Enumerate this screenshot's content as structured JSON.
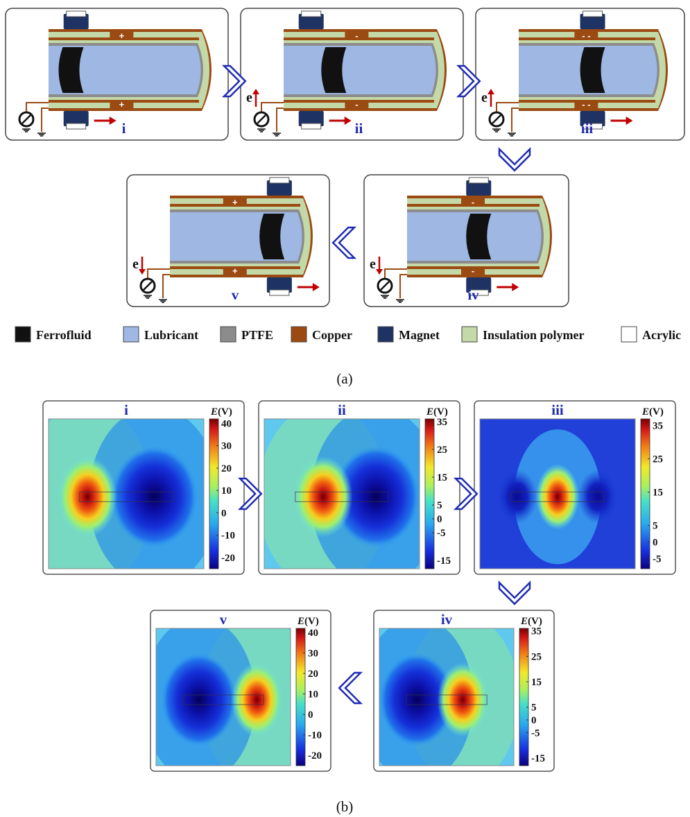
{
  "panel_a": {
    "caption": "(a)",
    "steps": [
      {
        "id": "i",
        "label": "i",
        "magnet_pos": 0.12,
        "fluid_pos": 0.08,
        "plus_sign": "+",
        "top_copper_sign": "+",
        "show_current": false
      },
      {
        "id": "ii",
        "label": "ii",
        "magnet_pos": 0.12,
        "fluid_pos": 0.3,
        "top_copper_sign": "-",
        "show_current": true,
        "current_dir": "up"
      },
      {
        "id": "iii",
        "label": "iii",
        "magnet_pos": 0.55,
        "fluid_pos": 0.55,
        "top_copper_sign": "- -",
        "show_current": true,
        "current_dir": "up"
      },
      {
        "id": "iv",
        "label": "iv",
        "magnet_pos": 0.55,
        "fluid_pos": 0.55,
        "top_copper_sign": "-",
        "show_current": true,
        "current_dir": "down"
      },
      {
        "id": "v",
        "label": "v",
        "magnet_pos": 0.92,
        "fluid_pos": 0.85,
        "top_copper_sign": "+",
        "show_current": true,
        "current_dir": "down"
      }
    ],
    "electron_label": "e",
    "legend": [
      {
        "label": "Ferrofluid",
        "color": "#111111"
      },
      {
        "label": "Lubricant",
        "color": "#9fb7e3"
      },
      {
        "label": "PTFE",
        "color": "#8c8c8c"
      },
      {
        "label": "Copper",
        "color": "#9b4a12"
      },
      {
        "label": "Magnet",
        "color": "#1e3264"
      },
      {
        "label": "Insulation polymer",
        "color": "#c4d9a8"
      },
      {
        "label": "Acrylic",
        "color": "#ffffff"
      }
    ]
  },
  "panel_b": {
    "caption": "(b)",
    "colorbar_title_italic": "E",
    "colorbar_title_rest": "(V)",
    "maps": [
      {
        "id": "i",
        "label": "i",
        "ticks": [
          "40",
          "30",
          "20",
          "10",
          "0",
          "-10",
          "-20"
        ],
        "range": [
          -25,
          42
        ],
        "pos_x": 0.25,
        "neg_x": 0.68,
        "pos_strength": 1.0,
        "neg_strength": 1.0
      },
      {
        "id": "ii",
        "label": "ii",
        "ticks": [
          "35",
          "25",
          "15",
          "5",
          "0",
          "-5",
          "-15"
        ],
        "range": [
          -18,
          36
        ],
        "pos_x": 0.38,
        "neg_x": 0.72,
        "pos_strength": 1.0,
        "neg_strength": 0.85
      },
      {
        "id": "iii",
        "label": "iii",
        "ticks": [
          "35",
          "25",
          "15",
          "5",
          "0",
          "-5"
        ],
        "range": [
          -8,
          37
        ],
        "pos_x": 0.5,
        "neg_x": 0.24,
        "neg_x2": 0.76,
        "pos_strength": 1.0,
        "neg_strength": 0.6
      },
      {
        "id": "iv",
        "label": "iv",
        "ticks": [
          "35",
          "25",
          "15",
          "5",
          "0",
          "-5",
          "-15"
        ],
        "range": [
          -18,
          36
        ],
        "pos_x": 0.62,
        "neg_x": 0.28,
        "pos_strength": 1.0,
        "neg_strength": 0.85
      },
      {
        "id": "v",
        "label": "v",
        "ticks": [
          "40",
          "30",
          "20",
          "10",
          "0",
          "-10",
          "-20"
        ],
        "range": [
          -25,
          42
        ],
        "pos_x": 0.75,
        "neg_x": 0.32,
        "pos_strength": 1.0,
        "neg_strength": 1.0
      }
    ]
  }
}
